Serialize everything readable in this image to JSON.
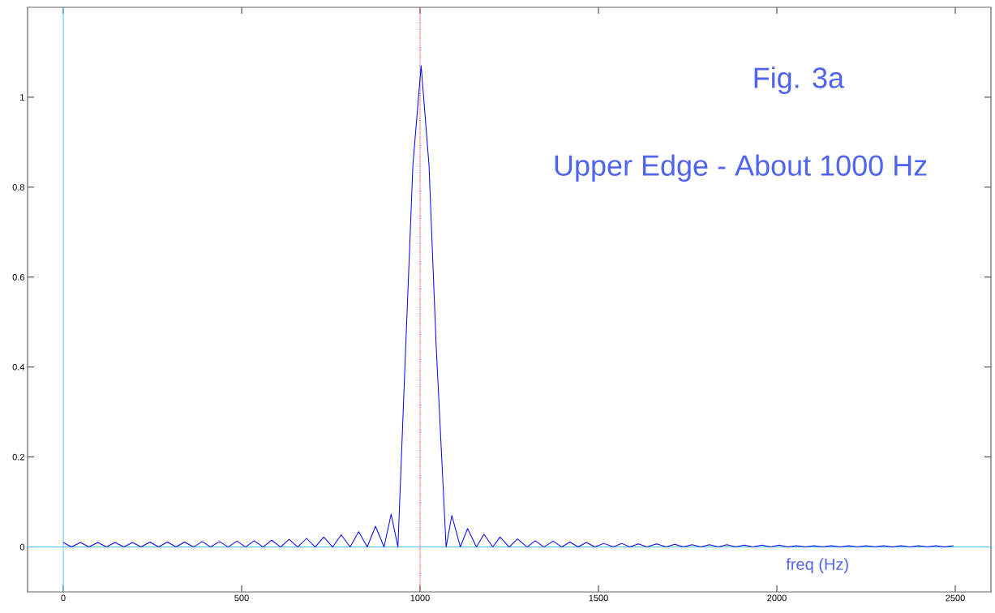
{
  "chart_data": {
    "type": "line",
    "xlabel": "freq (Hz)",
    "annotations": [
      "Fig. 3a",
      "Upper Edge - About 1000 Hz"
    ],
    "xlim": [
      -100,
      2600
    ],
    "xticks": [
      0,
      500,
      1000,
      1500,
      2000,
      2500
    ],
    "ylim": [
      -0.1,
      1.2
    ],
    "yticks": [
      0,
      0.2,
      0.4,
      0.6,
      0.8,
      1
    ],
    "marker": "none",
    "line_style": "solid",
    "ref_lines": [
      {
        "axis": "y",
        "value": 0,
        "color": "#55c8ee"
      },
      {
        "axis": "x",
        "value": 0,
        "color": "#55c8ee"
      },
      {
        "axis": "x",
        "value": 1000,
        "color": "#ff5050",
        "line_style": "dotted"
      }
    ],
    "series": [
      {
        "color": "#0000ff",
        "x": [
          0,
          23,
          48,
          72,
          97,
          121,
          145,
          170,
          194,
          218,
          243,
          267,
          292,
          316,
          340,
          365,
          389,
          413,
          438,
          462,
          487,
          511,
          535,
          560,
          584,
          609,
          633,
          657,
          682,
          706,
          730,
          755,
          779,
          804,
          828,
          852,
          875,
          899,
          919,
          938,
          960,
          980,
          1003,
          1025,
          1045,
          1073,
          1089,
          1113,
          1133,
          1158,
          1179,
          1204,
          1224,
          1250,
          1273,
          1300,
          1323,
          1347,
          1373,
          1397,
          1420,
          1443,
          1466,
          1490,
          1515,
          1542,
          1565,
          1588,
          1612,
          1636,
          1663,
          1690,
          1714,
          1738,
          1762,
          1787,
          1811,
          1836,
          1860,
          1885,
          1909,
          1933,
          1958,
          1982,
          2006,
          2031,
          2055,
          2080,
          2104,
          2128,
          2153,
          2177,
          2201,
          2226,
          2250,
          2275,
          2299,
          2324,
          2348,
          2372,
          2397,
          2421,
          2445,
          2470,
          2495
        ],
        "values": [
          0.01,
          0,
          0.01,
          0,
          0.01,
          0,
          0.01,
          0,
          0.01,
          0,
          0.011,
          0,
          0.011,
          0,
          0.011,
          0,
          0.012,
          0,
          0.012,
          0,
          0.013,
          0,
          0.014,
          0,
          0.015,
          0,
          0.017,
          0,
          0.019,
          0,
          0.022,
          0,
          0.027,
          0,
          0.034,
          0,
          0.046,
          0,
          0.073,
          0,
          0.45,
          0.85,
          1.07,
          0.85,
          0.45,
          0,
          0.07,
          0,
          0.041,
          0,
          0.028,
          0,
          0.022,
          0,
          0.018,
          0,
          0.014,
          0,
          0.013,
          0,
          0.011,
          0,
          0.01,
          0,
          0.008,
          0,
          0.008,
          0,
          0.007,
          0,
          0.007,
          0,
          0.006,
          0,
          0.005,
          0,
          0.005,
          0,
          0.005,
          0,
          0.004,
          0,
          0.004,
          0,
          0.004,
          0,
          0.003,
          0,
          0.003,
          0,
          0.003,
          0,
          0.003,
          0,
          0.003,
          0,
          0.003,
          0,
          0.003,
          0,
          0.003,
          0,
          0.003,
          0,
          0.003
        ]
      }
    ]
  }
}
